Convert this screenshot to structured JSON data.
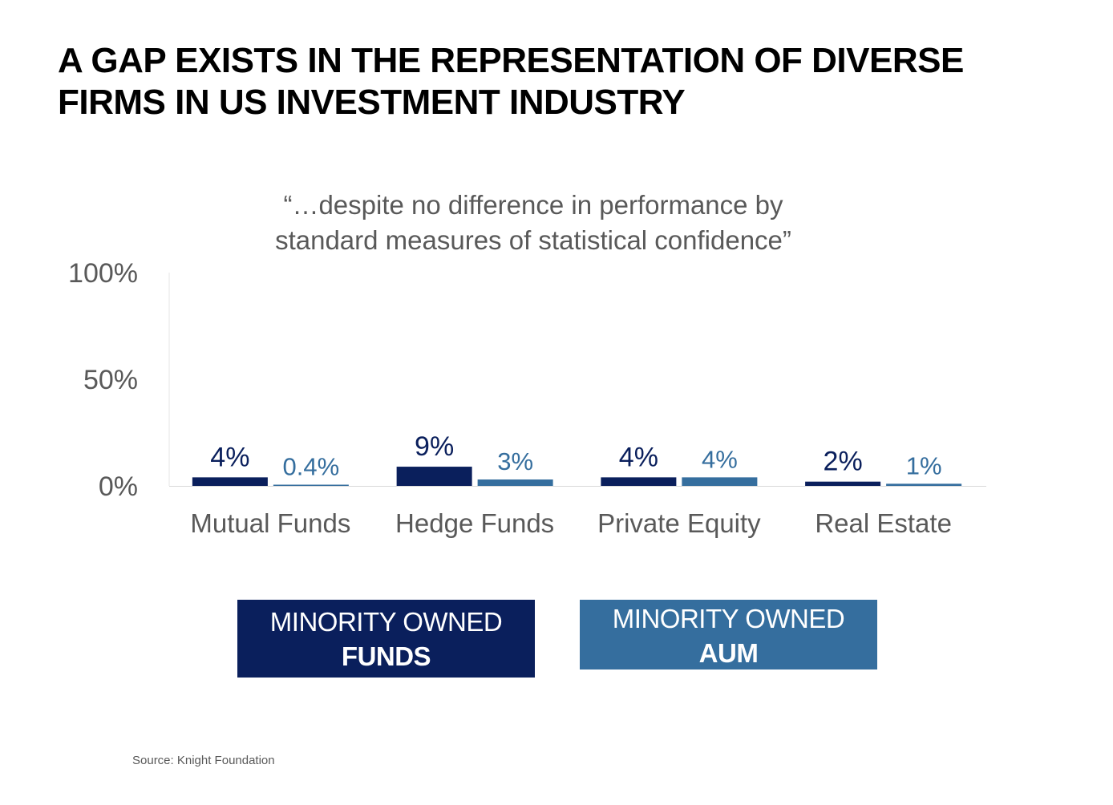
{
  "title_lines": [
    "A GAP EXISTS IN THE REPRESENTATION OF DIVERSE",
    "FIRMS IN US INVESTMENT INDUSTRY"
  ],
  "subtitle_lines": [
    "“…despite no difference in performance by",
    "standard measures of statistical confidence”"
  ],
  "legend": {
    "funds": {
      "line1": "MINORITY OWNED",
      "line2": "FUNDS",
      "color": "#0a1f5c"
    },
    "aum": {
      "line1": "MINORITY OWNED",
      "line2": "AUM",
      "color": "#356e9e"
    }
  },
  "source": "Source: Knight Foundation",
  "chart_data": {
    "type": "bar",
    "categories": [
      "Mutual Funds",
      "Hedge Funds",
      "Private Equity",
      "Real Estate"
    ],
    "series": [
      {
        "name": "MINORITY OWNED FUNDS",
        "values": [
          4,
          9,
          4,
          2
        ],
        "labels": [
          "4%",
          "9%",
          "4%",
          "2%"
        ],
        "color": "#0a1f5c"
      },
      {
        "name": "MINORITY OWNED AUM",
        "values": [
          0.4,
          3,
          4,
          1
        ],
        "labels": [
          "0.4%",
          "3%",
          "4%",
          "1%"
        ],
        "color": "#356e9e"
      }
    ],
    "ylim": [
      0,
      100
    ],
    "yticks": [
      0,
      50,
      100
    ],
    "ytick_labels": [
      "0%",
      "50%",
      "100%"
    ],
    "xlabel": "",
    "ylabel": "",
    "grid": false,
    "legend_position": "bottom"
  }
}
